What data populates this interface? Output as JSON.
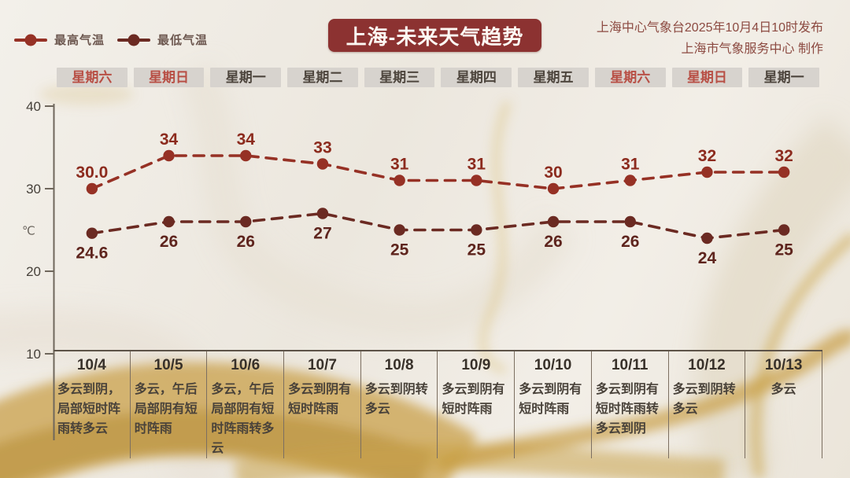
{
  "header": {
    "title": "上海-未来天气趋势",
    "issued_line1": "上海中心气象台2025年10月4日10时发布",
    "issued_line2": "上海市气象服务中心 制作"
  },
  "legend": [
    {
      "label": "最高气温",
      "color": "#963125"
    },
    {
      "label": "最低气温",
      "color": "#6b2a22"
    }
  ],
  "chart_data": {
    "type": "line",
    "title": "上海-未来天气趋势",
    "ylabel": "℃",
    "ylim": [
      10,
      40
    ],
    "yticks": [
      40,
      30,
      20,
      10
    ],
    "grid": false,
    "legend_position": "top-left",
    "categories_weekday": [
      "星期六",
      "星期日",
      "星期一",
      "星期二",
      "星期三",
      "星期四",
      "星期五",
      "星期六",
      "星期日",
      "星期一"
    ],
    "categories_date": [
      "10/4",
      "10/5",
      "10/6",
      "10/7",
      "10/8",
      "10/9",
      "10/10",
      "10/11",
      "10/12",
      "10/13"
    ],
    "series": [
      {
        "name": "最高气温",
        "values": [
          30.0,
          34,
          34,
          33,
          31,
          31,
          30,
          31,
          32,
          32
        ],
        "labels": [
          "30.0",
          "34",
          "34",
          "33",
          "31",
          "31",
          "30",
          "31",
          "32",
          "32"
        ],
        "color": "#963125",
        "label_color": "#8c2b1e",
        "label_side": "above",
        "style": "dashed"
      },
      {
        "name": "最低气温",
        "values": [
          24.6,
          26,
          26,
          27,
          25,
          25,
          26,
          26,
          24,
          25
        ],
        "labels": [
          "24.6",
          "26",
          "26",
          "27",
          "25",
          "25",
          "26",
          "26",
          "24",
          "25"
        ],
        "color": "#6b2a22",
        "label_color": "#5e241d",
        "label_side": "below",
        "style": "dashed"
      }
    ]
  },
  "days": [
    {
      "weekday": "星期六",
      "weekend": true,
      "date": "10/4",
      "weather": "多云到阴，局部短时阵雨转多云"
    },
    {
      "weekday": "星期日",
      "weekend": true,
      "date": "10/5",
      "weather": "多云，午后局部阴有短时阵雨"
    },
    {
      "weekday": "星期一",
      "weekend": false,
      "date": "10/6",
      "weather": "多云，午后局部阴有短时阵雨转多云"
    },
    {
      "weekday": "星期二",
      "weekend": false,
      "date": "10/7",
      "weather": "多云到阴有短时阵雨"
    },
    {
      "weekday": "星期三",
      "weekend": false,
      "date": "10/8",
      "weather": "多云到阴转多云"
    },
    {
      "weekday": "星期四",
      "weekend": false,
      "date": "10/9",
      "weather": "多云到阴有短时阵雨"
    },
    {
      "weekday": "星期五",
      "weekend": false,
      "date": "10/10",
      "weather": "多云到阴有短时阵雨"
    },
    {
      "weekday": "星期六",
      "weekend": true,
      "date": "10/11",
      "weather": "多云到阴有短时阵雨转多云到阴"
    },
    {
      "weekday": "星期日",
      "weekend": true,
      "date": "10/12",
      "weather": "多云到阴转多云"
    },
    {
      "weekday": "星期一",
      "weekend": false,
      "date": "10/13",
      "weather": "多云"
    }
  ],
  "colors": {
    "title_bg": "#8c3231",
    "axis": "#6f675c",
    "tick_text": "#46413a",
    "unit_text": "#6e6860",
    "weekend_text": "#b84f45",
    "weekday_text": "#4e463e",
    "gold": "#c79d42"
  }
}
